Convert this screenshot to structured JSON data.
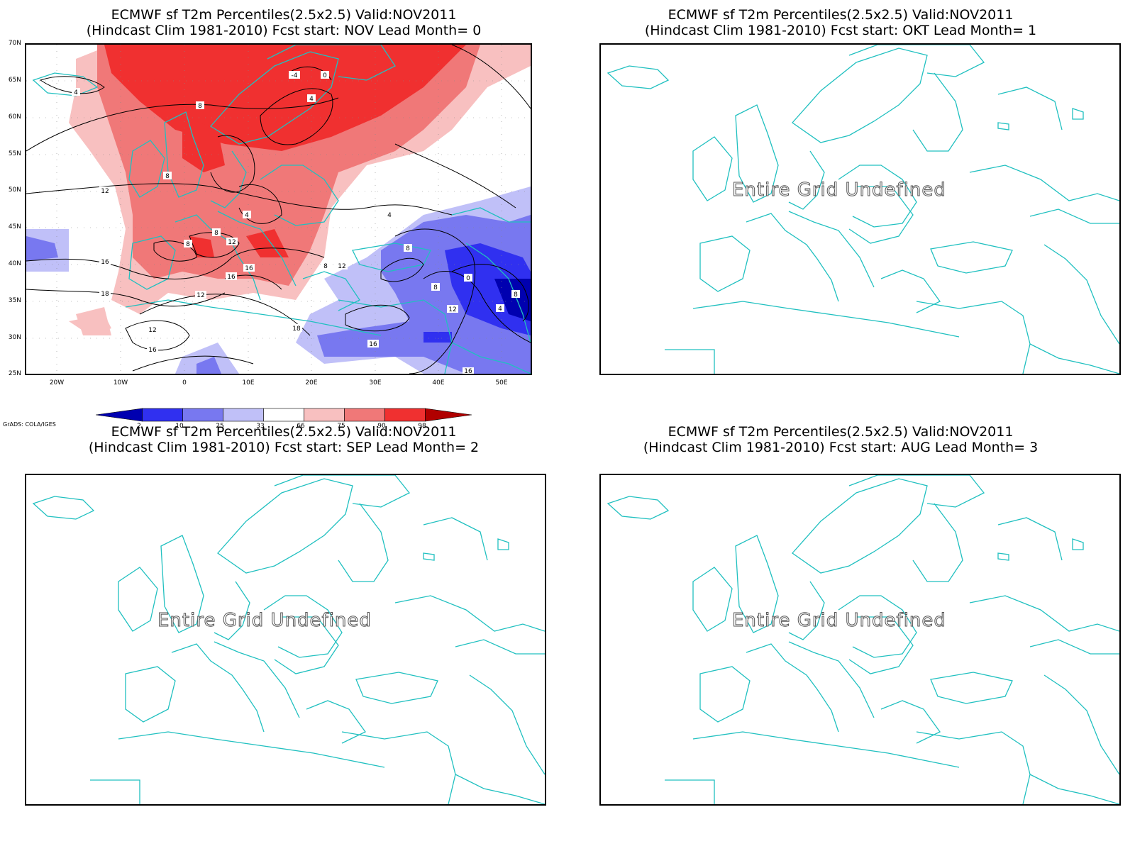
{
  "panels": [
    {
      "title_line1": "ECMWF sf T2m Percentiles(2.5x2.5) Valid:NOV2011",
      "title_line2": "(Hindcast Clim 1981-2010) Fcst start: NOV  Lead Month= 0"
    },
    {
      "title_line1": "ECMWF sf T2m Percentiles(2.5x2.5) Valid:NOV2011",
      "title_line2": "(Hindcast Clim 1981-2010) Fcst start: OKT  Lead Month= 1",
      "message": "Entire Grid Undefined"
    },
    {
      "title_line1": "ECMWF sf T2m Percentiles(2.5x2.5) Valid:NOV2011",
      "title_line2": "(Hindcast Clim 1981-2010) Fcst start: SEP  Lead Month= 2",
      "message": "Entire Grid Undefined"
    },
    {
      "title_line1": "ECMWF sf T2m Percentiles(2.5x2.5) Valid:NOV2011",
      "title_line2": "(Hindcast Clim 1981-2010) Fcst start: AUG  Lead Month= 3",
      "message": "Entire Grid Undefined"
    }
  ],
  "map_axes": {
    "lat_labels": [
      "70N",
      "65N",
      "60N",
      "55N",
      "50N",
      "45N",
      "40N",
      "35N",
      "30N",
      "25N"
    ],
    "lon_labels": [
      "20W",
      "10W",
      "0",
      "10E",
      "20E",
      "30E",
      "40E",
      "50E"
    ]
  },
  "colorbar": {
    "labels": [
      "2",
      "10",
      "25",
      "33",
      "66",
      "75",
      "90",
      "98"
    ],
    "colors": [
      "#0000b0",
      "#3030f0",
      "#7878f0",
      "#c0c0f8",
      "#ffffff",
      "#f8c0c0",
      "#f07878",
      "#f03030",
      "#b00000"
    ]
  },
  "contour_labels": [
    "-4",
    "0",
    "4",
    "8",
    "8",
    "4",
    "8",
    "12",
    "4",
    "8",
    "12",
    "16",
    "16",
    "8",
    "12",
    "16",
    "18",
    "12",
    "12",
    "16",
    "18",
    "4",
    "8",
    "0",
    "8",
    "4",
    "12",
    "16",
    "16",
    "12",
    "8"
  ],
  "credit": "GrADS: COLA/IGES",
  "colors": {
    "coast": "#20c0c0",
    "contour": "#000000"
  }
}
